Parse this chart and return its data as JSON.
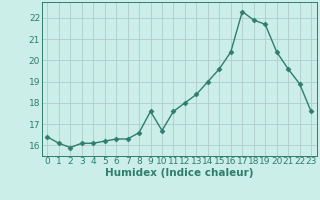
{
  "x": [
    0,
    1,
    2,
    3,
    4,
    5,
    6,
    7,
    8,
    9,
    10,
    11,
    12,
    13,
    14,
    15,
    16,
    17,
    18,
    19,
    20,
    21,
    22,
    23
  ],
  "y": [
    16.4,
    16.1,
    15.9,
    16.1,
    16.1,
    16.2,
    16.3,
    16.3,
    16.6,
    17.6,
    16.7,
    17.6,
    18.0,
    18.4,
    19.0,
    19.6,
    20.4,
    22.3,
    21.9,
    21.7,
    20.4,
    19.6,
    18.9,
    17.6
  ],
  "line_color": "#2e7d6e",
  "marker": "D",
  "marker_size": 2.5,
  "bg_color": "#cceee8",
  "grid_color": "#b0cccc",
  "xlabel": "Humidex (Indice chaleur)",
  "ylabel_ticks": [
    16,
    17,
    18,
    19,
    20,
    21,
    22
  ],
  "xlim": [
    -0.5,
    23.5
  ],
  "ylim": [
    15.5,
    22.75
  ],
  "xlabel_color": "#2e7d6e",
  "tick_label_color": "#2e7d6e",
  "xlabel_fontsize": 7.5,
  "tick_fontsize": 6.5,
  "linewidth": 1.0
}
